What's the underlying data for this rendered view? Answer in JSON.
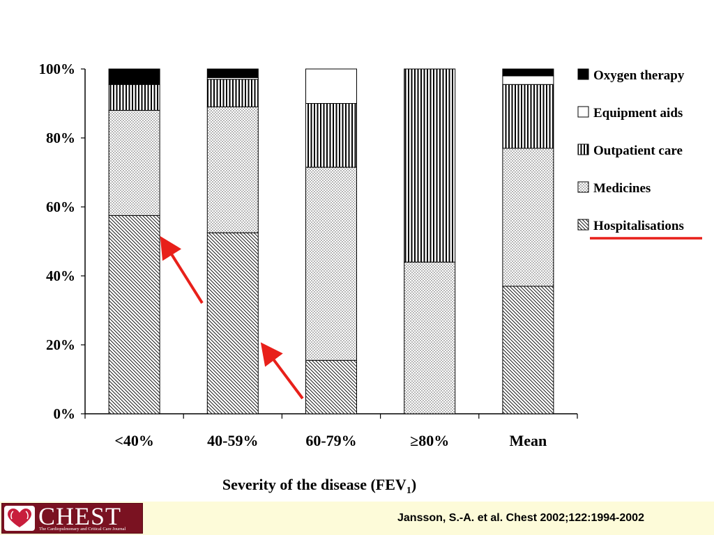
{
  "chart_data": {
    "type": "bar",
    "stacked": true,
    "categories": [
      "<40%",
      "40-59%",
      "60-79%",
      "≥80%",
      "Mean"
    ],
    "y_ticks": [
      "0%",
      "20%",
      "40%",
      "60%",
      "80%",
      "100%"
    ],
    "ylim": [
      0,
      100
    ],
    "xlabel": "Severity of the disease (FEV",
    "xlabel_subscript": "1",
    "xlabel_close": ")",
    "legend_position": "right",
    "series": [
      {
        "name": "Hospitalisations",
        "pattern": "diagonal-hatch",
        "values": [
          57.5,
          52.5,
          15.5,
          0,
          37
        ]
      },
      {
        "name": "Medicines",
        "pattern": "dots",
        "values": [
          30.5,
          36.5,
          56,
          44,
          40
        ]
      },
      {
        "name": "Outpatient care",
        "pattern": "vertical-lines",
        "values": [
          7.5,
          8,
          18.5,
          56,
          18.5
        ]
      },
      {
        "name": "Equipment aids",
        "pattern": "white",
        "values": [
          0,
          0.5,
          10,
          0,
          2.5
        ]
      },
      {
        "name": "Oxygen therapy",
        "pattern": "solid-black",
        "values": [
          4.5,
          2.5,
          0,
          0,
          2
        ]
      }
    ],
    "legend_order": [
      "Oxygen therapy",
      "Equipment aids",
      "Outpatient care",
      "Medicines",
      "Hospitalisations"
    ],
    "highlight_color": "#e8201a"
  },
  "footer": {
    "logo_text": "CHEST",
    "logo_subtitle": "The Cardiopulmonary and Critical Care Journal",
    "citation": "Jansson, S.-A. et al. Chest 2002;122:1994-2002",
    "background": "#fdfbd9",
    "logo_color": "#7a1221"
  }
}
